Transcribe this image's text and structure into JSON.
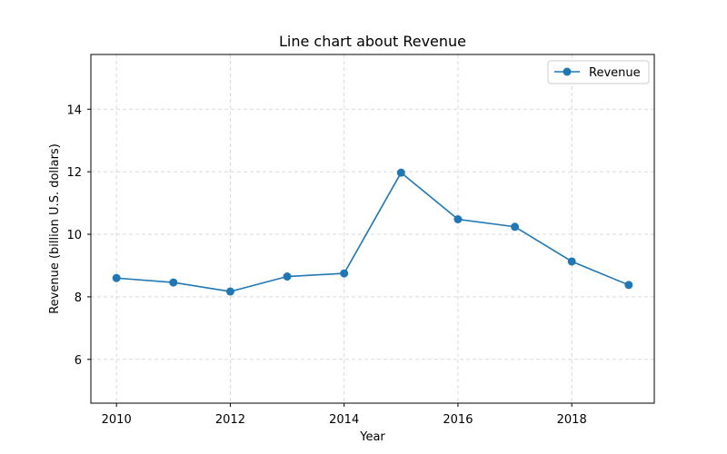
{
  "chart_data": {
    "type": "line",
    "title": "Line chart about Revenue",
    "xlabel": "Year",
    "ylabel": "Revenue (billion U.S. dollars)",
    "x": [
      2010,
      2011,
      2012,
      2013,
      2014,
      2015,
      2016,
      2017,
      2018,
      2019
    ],
    "series": [
      {
        "name": "Revenue",
        "color": "#1f77b4",
        "marker": "circle",
        "values": [
          8.6,
          8.46,
          8.17,
          8.65,
          8.75,
          11.97,
          10.48,
          10.24,
          9.13,
          8.38
        ]
      }
    ],
    "xlim": [
      2009.55,
      2019.45
    ],
    "ylim": [
      4.6,
      15.75
    ],
    "xticks": [
      2010,
      2012,
      2014,
      2016,
      2018
    ],
    "yticks": [
      6,
      8,
      10,
      12,
      14
    ],
    "grid": true,
    "legend_position": "top-right"
  }
}
